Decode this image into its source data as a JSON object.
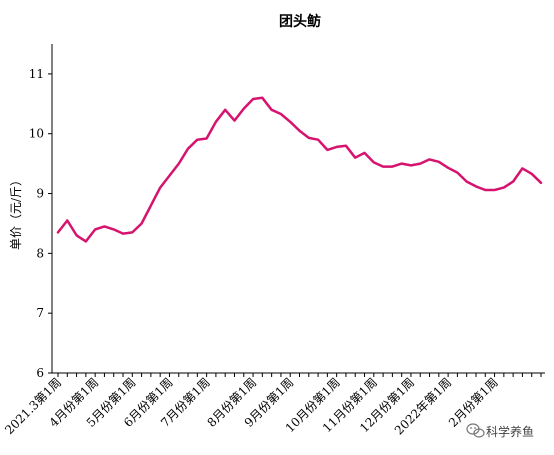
{
  "chart_data": {
    "type": "line",
    "title": "团头鲂",
    "ylabel": "单价（元/斤）",
    "xlabel": "",
    "ylim": [
      6,
      11.5
    ],
    "yticks": [
      6,
      7,
      8,
      9,
      10,
      11
    ],
    "line_color": "#d6136e",
    "x_tick_labels": [
      "2021.3第1周",
      "4月份第1周",
      "5月份第1周",
      "6月份第1周",
      "7月份第1周",
      "8月份第1周",
      "9月份第1周",
      "10月份第1周",
      "11月份第1周",
      "12月份第1周",
      "2022年第1周",
      "2月份第1周"
    ],
    "x_tick_positions": [
      0,
      4,
      8,
      12,
      16,
      21,
      25,
      30,
      34,
      38,
      42,
      47
    ],
    "series": [
      {
        "values": [
          8.35,
          8.55,
          8.3,
          8.2,
          8.4,
          8.45,
          8.4,
          8.33,
          8.35,
          8.5,
          8.8,
          9.1,
          9.3,
          9.5,
          9.75,
          9.9,
          9.92,
          10.2,
          10.4,
          10.22,
          10.42,
          10.58,
          10.6,
          10.4,
          10.33,
          10.2,
          10.05,
          9.93,
          9.9,
          9.73,
          9.78,
          9.8,
          9.6,
          9.68,
          9.52,
          9.45,
          9.45,
          9.5,
          9.47,
          9.5,
          9.57,
          9.53,
          9.43,
          9.35,
          9.2,
          9.12,
          9.06,
          9.06,
          9.1,
          9.2,
          9.42,
          9.33,
          9.18
        ]
      }
    ]
  },
  "watermark": {
    "text": "科学养鱼",
    "icon": "wechat-icon"
  }
}
